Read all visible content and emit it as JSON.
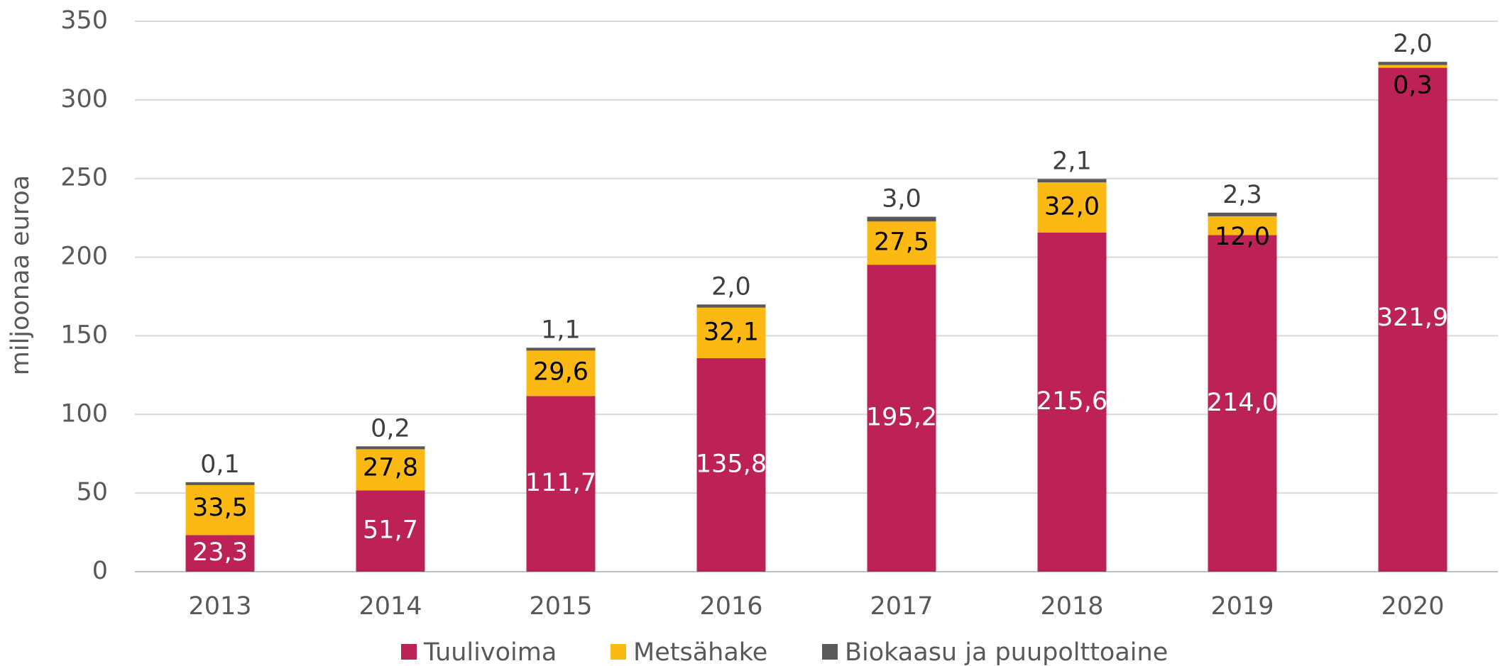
{
  "chart_data": {
    "type": "bar",
    "stacked": true,
    "ylabel": "miljoonaa euroa",
    "categories": [
      "2013",
      "2014",
      "2015",
      "2016",
      "2017",
      "2018",
      "2019",
      "2020"
    ],
    "series": [
      {
        "name": "Tuulivoima",
        "color": "#bc2257",
        "label_color": "#ffffff",
        "values": [
          23.3,
          51.7,
          111.7,
          135.8,
          195.2,
          215.6,
          214.0,
          321.9
        ],
        "value_labels": [
          "23,3",
          "51,7",
          "111,7",
          "135,8",
          "195,2",
          "215,6",
          "214,0",
          "321,9"
        ]
      },
      {
        "name": "Metsähake",
        "color": "#fdb913",
        "label_color": "#000000",
        "values": [
          33.5,
          27.8,
          29.6,
          32.1,
          27.5,
          32.0,
          12.0,
          0.3
        ],
        "value_labels": [
          "33,5",
          "27,8",
          "29,6",
          "32,1",
          "27,5",
          "32,0",
          "12,0",
          "0,3"
        ]
      },
      {
        "name": "Biokaasu ja puupolttoaine",
        "color": "#595959",
        "label_color": "#404040",
        "values": [
          0.1,
          0.2,
          1.1,
          2.0,
          3.0,
          2.1,
          2.3,
          2.0
        ],
        "value_labels": [
          "0,1",
          "0,2",
          "1,1",
          "2,0",
          "3,0",
          "2,1",
          "2,3",
          "2,0"
        ]
      }
    ],
    "ylim": [
      0,
      350
    ],
    "yticks": [
      0,
      50,
      100,
      150,
      200,
      250,
      300,
      350
    ],
    "grid": true,
    "legend": "bottom"
  }
}
